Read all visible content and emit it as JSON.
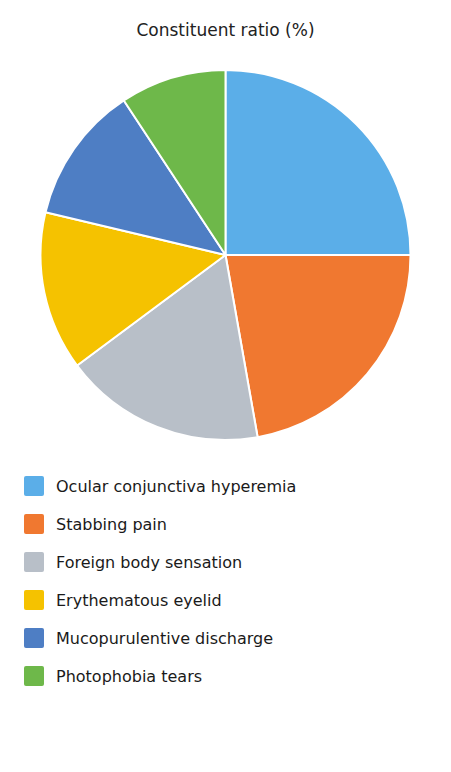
{
  "chart_data": {
    "type": "pie",
    "title": "Constituent ratio (%)",
    "categories": [
      "Ocular conjunctiva hyperemia",
      "Stabbing pain",
      "Foreign body sensation",
      "Erythematous eyelid",
      "Mucopurulentive discharge",
      "Photophobia tears"
    ],
    "values": [
      27,
      24,
      19,
      15,
      13,
      10
    ],
    "colors": [
      "#5baee8",
      "#f07830",
      "#b8bfc8",
      "#f5c200",
      "#4e7ec4",
      "#6eb84a"
    ],
    "legend": "bottom"
  }
}
